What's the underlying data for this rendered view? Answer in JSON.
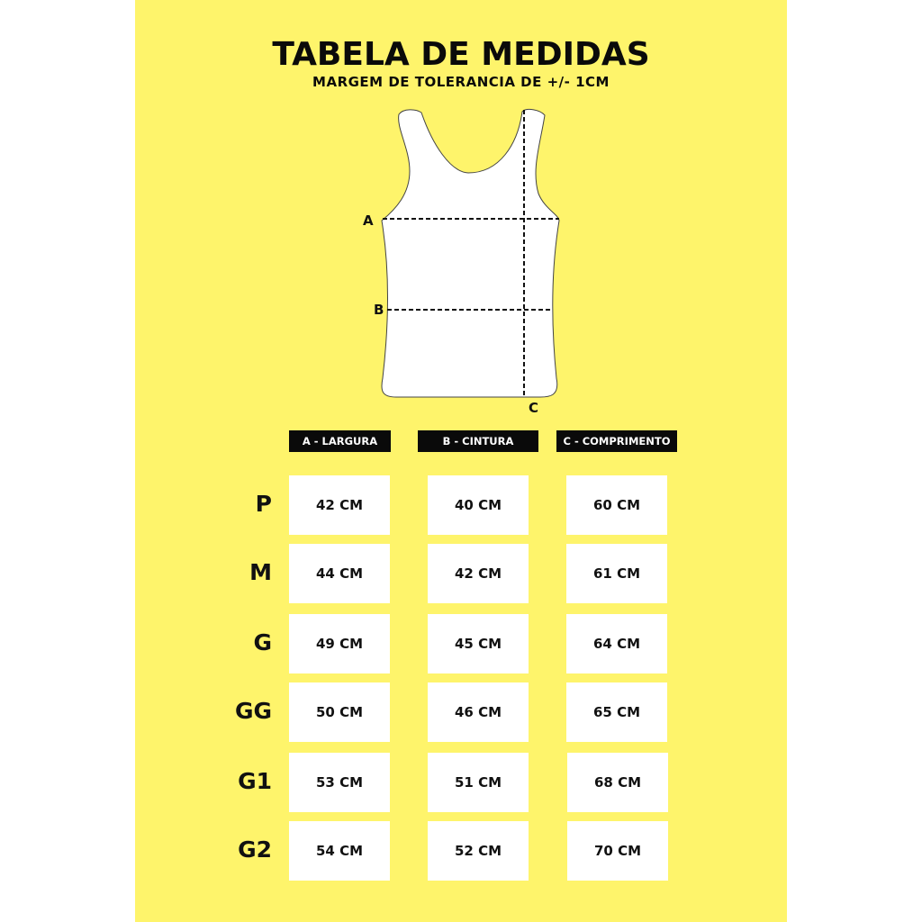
{
  "title": "TABELA DE MEDIDAS",
  "subtitle": "MARGEM DE TOLERANCIA DE +/- 1CM",
  "diagram": {
    "label_a": "A",
    "label_b": "B",
    "label_c": "C"
  },
  "colors": {
    "background": "#fef46b",
    "header": "#0a0a0a",
    "cell": "#ffffff"
  },
  "columns": [
    "A - LARGURA",
    "B - CINTURA",
    "C - COMPRIMENTO"
  ],
  "rows": [
    {
      "size": "P",
      "values": [
        "42 CM",
        "40 CM",
        "60 CM"
      ]
    },
    {
      "size": "M",
      "values": [
        "44 CM",
        "42 CM",
        "61 CM"
      ]
    },
    {
      "size": "G",
      "values": [
        "49 CM",
        "45 CM",
        "64 CM"
      ]
    },
    {
      "size": "GG",
      "values": [
        "50 CM",
        "46 CM",
        "65 CM"
      ]
    },
    {
      "size": "G1",
      "values": [
        "53 CM",
        "51 CM",
        "68 CM"
      ]
    },
    {
      "size": "G2",
      "values": [
        "54 CM",
        "52 CM",
        "70 CM"
      ]
    }
  ]
}
